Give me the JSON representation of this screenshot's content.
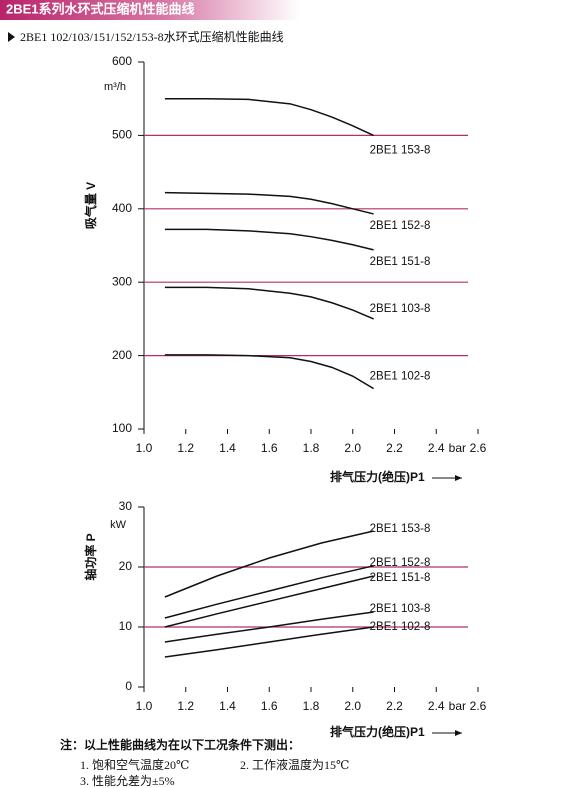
{
  "header": {
    "title": "2BE1系列水环式压缩机性能曲线",
    "subtitle": "2BE1 102/103/151/152/153-8水环式压缩机性能曲线"
  },
  "chart_data": [
    {
      "type": "line",
      "y_label": "吸气量 V",
      "y_unit": "m³/h",
      "x_label": "排气压力(绝压)P1",
      "x_unit": "bar",
      "x": [
        1.1,
        1.3,
        1.5,
        1.7,
        1.8,
        1.9,
        2.0,
        2.1
      ],
      "xlim": [
        1.0,
        2.6
      ],
      "xticks": [
        {
          "value": 1.0,
          "label": "1.0"
        },
        1.2,
        1.4,
        1.6,
        1.8,
        {
          "value": 2.0,
          "label": "2.0"
        },
        2.2,
        2.4,
        2.6
      ],
      "ylim": [
        100,
        600
      ],
      "yticks": [
        100,
        200,
        300,
        400,
        500,
        600
      ],
      "grid": true,
      "grid_color": "#b0306a",
      "series": [
        {
          "name": "2BE1 153-8",
          "color": "#111111",
          "values": [
            550,
            550,
            549,
            543,
            535,
            525,
            513,
            500
          ]
        },
        {
          "name": "2BE1 152-8",
          "color": "#111111",
          "values": [
            422,
            421,
            420,
            417,
            413,
            407,
            400,
            393
          ]
        },
        {
          "name": "2BE1 151-8",
          "color": "#111111",
          "values": [
            372,
            372,
            370,
            366,
            362,
            357,
            351,
            344
          ]
        },
        {
          "name": "2BE1 103-8",
          "color": "#111111",
          "values": [
            293,
            293,
            291,
            285,
            280,
            272,
            262,
            250
          ]
        },
        {
          "name": "2BE1 102-8",
          "color": "#111111",
          "values": [
            201,
            201,
            200,
            197,
            192,
            184,
            172,
            155
          ]
        }
      ]
    },
    {
      "type": "line",
      "y_label": "轴功率 P",
      "y_unit": "kW",
      "x_label": "排气压力(绝压)P1",
      "x_unit": "bar",
      "x": [
        1.1,
        1.35,
        1.6,
        1.85,
        2.1
      ],
      "xlim": [
        1.0,
        2.6
      ],
      "xticks": [
        {
          "value": 1.0,
          "label": "1.0"
        },
        1.2,
        1.4,
        1.6,
        1.8,
        {
          "value": 2.0,
          "label": "2.0"
        },
        2.2,
        2.4,
        2.6
      ],
      "ylim": [
        0,
        30
      ],
      "yticks": [
        0,
        10,
        20,
        30
      ],
      "grid": true,
      "grid_color": "#b0306a",
      "series": [
        {
          "name": "2BE1 153-8",
          "color": "#111111",
          "values": [
            15,
            18.5,
            21.5,
            24,
            26
          ]
        },
        {
          "name": "2BE1 152-8",
          "color": "#111111",
          "values": [
            11.5,
            13.8,
            16,
            18.2,
            20.2
          ]
        },
        {
          "name": "2BE1 151-8",
          "color": "#111111",
          "values": [
            10,
            12.2,
            14.3,
            16.4,
            18.5
          ]
        },
        {
          "name": "2BE1 103-8",
          "color": "#111111",
          "values": [
            7.5,
            8.8,
            10,
            11.3,
            12.5
          ]
        },
        {
          "name": "2BE1 102-8",
          "color": "#111111",
          "values": [
            5,
            6.2,
            7.5,
            8.8,
            10
          ]
        }
      ]
    }
  ],
  "notes": {
    "heading": "注：以上性能曲线为在以下工况条件下测出：",
    "items": [
      "1. 饱和空气温度20℃",
      "2. 工作液温度为15℃",
      "3. 性能允差为±5%"
    ]
  }
}
